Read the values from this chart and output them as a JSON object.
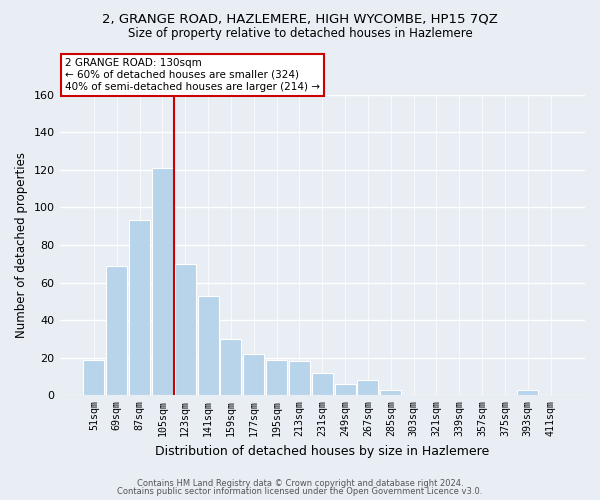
{
  "title": "2, GRANGE ROAD, HAZLEMERE, HIGH WYCOMBE, HP15 7QZ",
  "subtitle": "Size of property relative to detached houses in Hazlemere",
  "xlabel": "Distribution of detached houses by size in Hazlemere",
  "ylabel": "Number of detached properties",
  "footer_line1": "Contains HM Land Registry data © Crown copyright and database right 2024.",
  "footer_line2": "Contains public sector information licensed under the Open Government Licence v3.0.",
  "categories": [
    "51sqm",
    "69sqm",
    "87sqm",
    "105sqm",
    "123sqm",
    "141sqm",
    "159sqm",
    "177sqm",
    "195sqm",
    "213sqm",
    "231sqm",
    "249sqm",
    "267sqm",
    "285sqm",
    "303sqm",
    "321sqm",
    "339sqm",
    "357sqm",
    "375sqm",
    "393sqm",
    "411sqm"
  ],
  "values": [
    19,
    69,
    93,
    121,
    70,
    53,
    30,
    22,
    19,
    18,
    12,
    6,
    8,
    3,
    0,
    0,
    0,
    0,
    0,
    3,
    0
  ],
  "bar_color": "#b8d4ea",
  "bar_edge_color": "#ffffff",
  "red_line_bar_index": 4,
  "annotation_text_line1": "2 GRANGE ROAD: 130sqm",
  "annotation_text_line2": "← 60% of detached houses are smaller (324)",
  "annotation_text_line3": "40% of semi-detached houses are larger (214) →",
  "red_line_color": "#cc0000",
  "annotation_box_edge_color": "#cc0000",
  "background_color": "#e8eef4",
  "grid_color": "#ffffff",
  "ylim": [
    0,
    160
  ],
  "yticks": [
    0,
    20,
    40,
    60,
    80,
    100,
    120,
    140,
    160
  ]
}
